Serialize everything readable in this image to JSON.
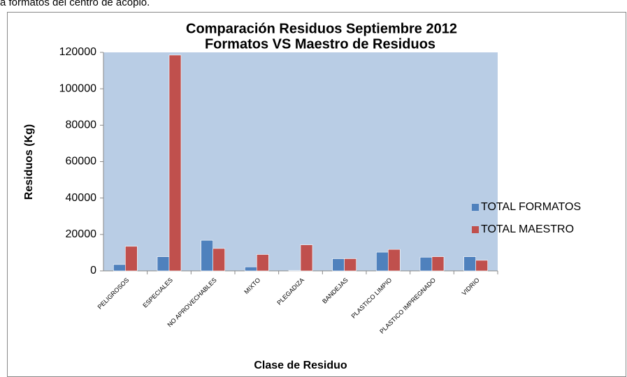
{
  "page_text": "a formatos del centro de acopio.",
  "chart_data": {
    "type": "bar",
    "title": [
      "Comparación  Residuos Septiembre 2012",
      "Formatos VS Maestro de Residuos"
    ],
    "ylabel": "Residuos (Kg)",
    "xlabel": "Clase de Residuo",
    "categories": [
      "PELIGROSOS",
      "ESPECIALES",
      "NO APROVECHABLES",
      "MIXTO",
      "PLEGADIZA",
      "BANDEJAS",
      "PLASTICO LIMPIO",
      "PLASTICO IMPREGNADO",
      "VIDRIO"
    ],
    "series": [
      {
        "name": "TOTAL FORMATOS",
        "color": "#4f81bd",
        "values": [
          3500,
          7800,
          16800,
          2200,
          300,
          6700,
          10300,
          7500,
          7800
        ]
      },
      {
        "name": "TOTAL MAESTRO",
        "color": "#c0504d",
        "values": [
          13500,
          118500,
          12300,
          9000,
          14300,
          6700,
          11800,
          7800,
          5800
        ]
      }
    ],
    "ylim": [
      0,
      120000
    ],
    "yticks": [
      0,
      20000,
      40000,
      60000,
      80000,
      100000,
      120000
    ],
    "legend": "right",
    "plot_background": "#b9cde5"
  }
}
